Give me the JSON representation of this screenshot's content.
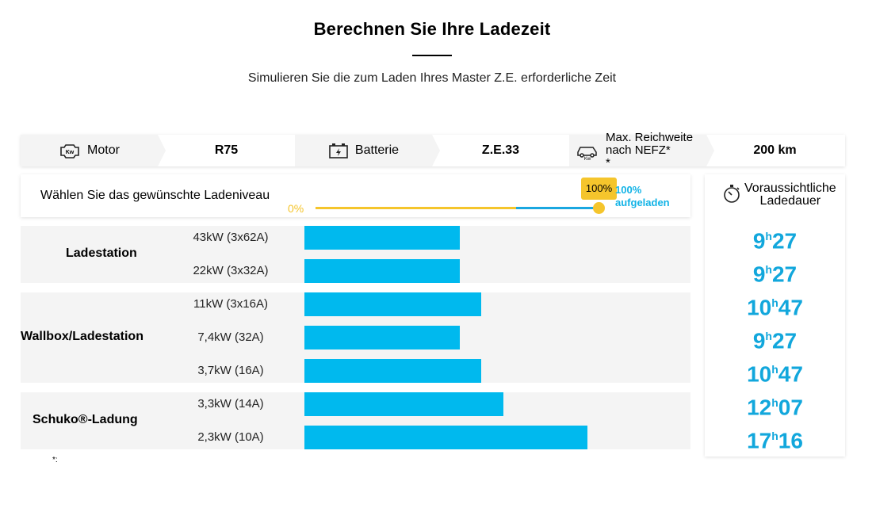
{
  "header": {
    "title": "Berechnen Sie Ihre Ladezeit",
    "subtitle": "Simulieren Sie die zum Laden Ihres Master Z.E. erforderliche Zeit"
  },
  "specs": {
    "motor_label": "Motor",
    "motor_value": "R75",
    "battery_label": "Batterie",
    "battery_value": "Z.E.33",
    "range_label_line1": "Max. Reichweite",
    "range_label_line2": "nach NEFZ*",
    "range_label_line3": "*",
    "range_value": "200 km",
    "icons": [
      "engine-kw-icon",
      "battery-icon",
      "car-range-icon"
    ]
  },
  "charge_level": {
    "label": "Wählen Sie das gewünschte Ladeniveau",
    "min_label": "0%",
    "value_label": "100%",
    "value": 1.0,
    "status_line1": "100%",
    "status_line2": "aufgeladen"
  },
  "groups": [
    {
      "name": "Ladestation",
      "rows": [
        {
          "label": "43kW (3x62A)",
          "hours": 9,
          "minutes": 27
        },
        {
          "label": "22kW (3x32A)",
          "hours": 9,
          "minutes": 27
        }
      ]
    },
    {
      "name": "Wallbox/Ladestation",
      "rows": [
        {
          "label": "11kW (3x16A)",
          "hours": 10,
          "minutes": 47
        },
        {
          "label": "7,4kW (32A)",
          "hours": 9,
          "minutes": 27
        },
        {
          "label": "3,7kW (16A)",
          "hours": 10,
          "minutes": 47
        }
      ]
    },
    {
      "name": "Schuko®-Ladung",
      "rows": [
        {
          "label": "3,3kW (14A)",
          "hours": 12,
          "minutes": 7
        },
        {
          "label": "2,3kW (10A)",
          "hours": 17,
          "minutes": 16
        }
      ]
    }
  ],
  "duration": {
    "title_line1": "Voraussichtliche",
    "title_line2": "Ladedauer",
    "hour_suffix": "h",
    "times": [
      {
        "hours": "9",
        "minutes": "27"
      },
      {
        "hours": "9",
        "minutes": "27"
      },
      {
        "hours": "10",
        "minutes": "47"
      },
      {
        "hours": "9",
        "minutes": "27"
      },
      {
        "hours": "10",
        "minutes": "47"
      },
      {
        "hours": "12",
        "minutes": "07"
      },
      {
        "hours": "17",
        "minutes": "16"
      }
    ]
  },
  "footnote": "*:",
  "colors": {
    "bar": "#00b9ee",
    "accent_yellow": "#f5c52c",
    "time_text": "#12a7dc"
  }
}
